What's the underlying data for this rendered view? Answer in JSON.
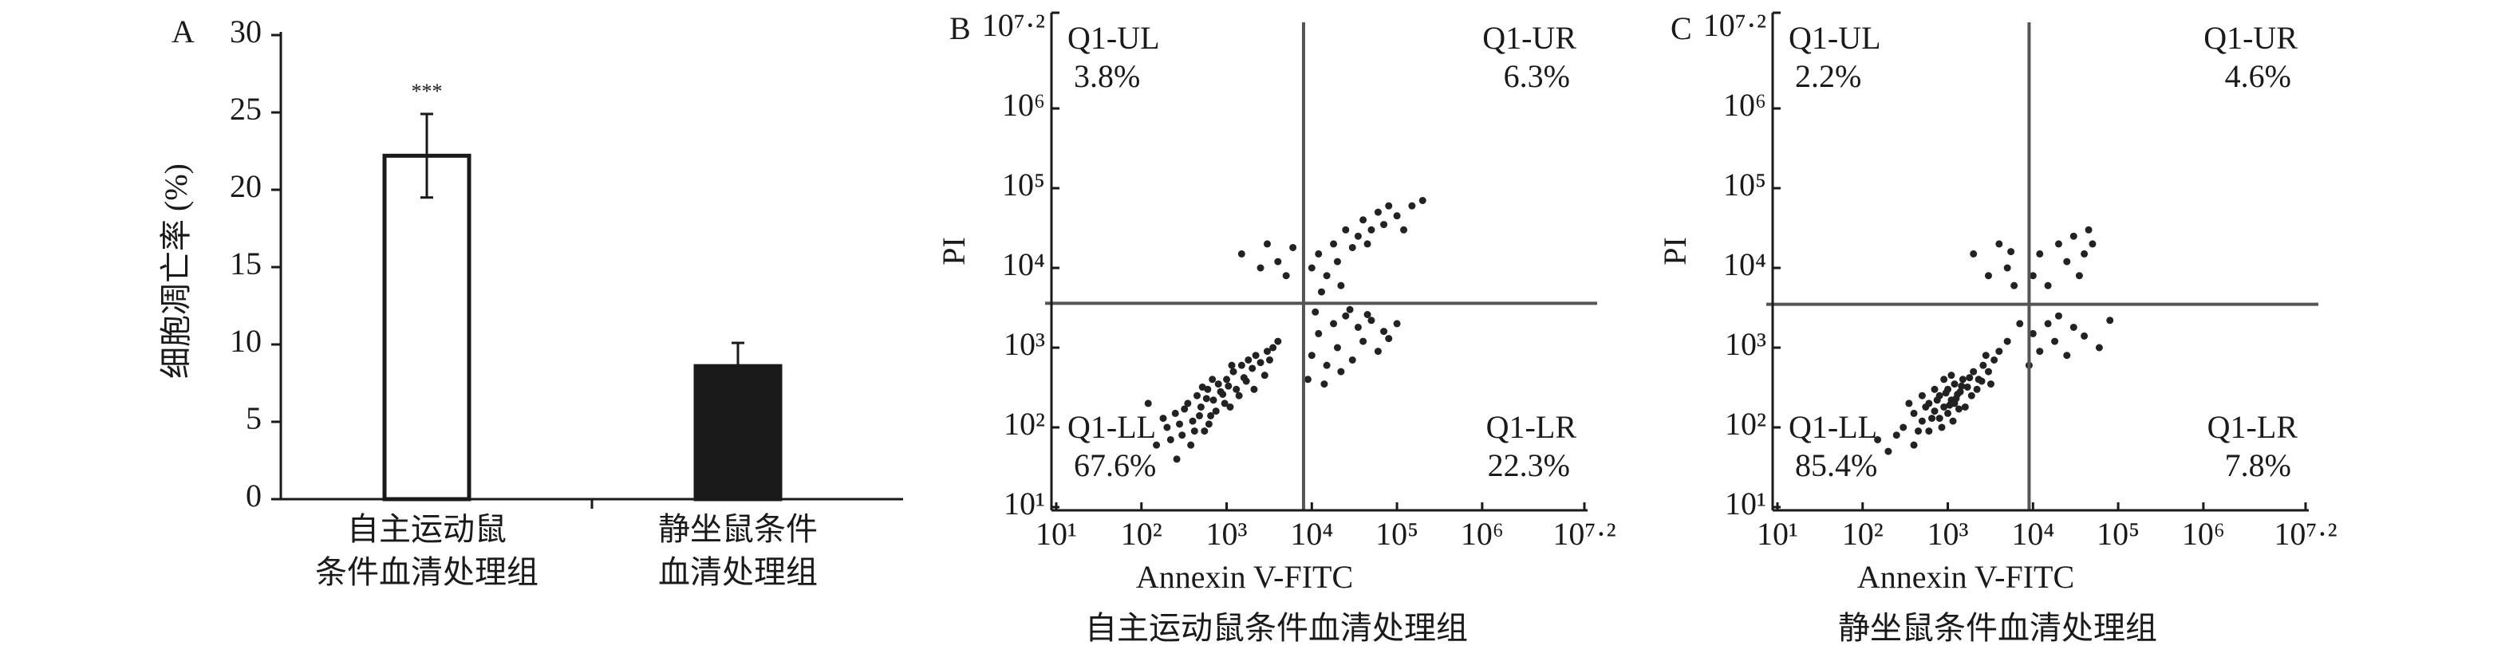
{
  "chart_data": [
    {
      "type": "bar",
      "panel_label": "A",
      "y_label": "细胞凋亡率 (%)",
      "categories": [
        [
          "自主运动鼠",
          "条件血清处理组"
        ],
        [
          "静坐鼠条件",
          "血清处理组"
        ]
      ],
      "values": [
        22.2,
        8.6
      ],
      "errors": [
        2.7,
        1.5
      ],
      "annotation": "***",
      "colors": [
        "#ffffff",
        "#1a1a1a"
      ],
      "edgecolor": "#1a1a1a",
      "ylim": [
        0,
        30
      ],
      "yticks": [
        0,
        5,
        10,
        15,
        20,
        25,
        30
      ]
    },
    {
      "type": "scatter",
      "panel_label": "B",
      "x_label": "Annexin V-FITC",
      "y_label": "PI",
      "subtitle": "自主运动鼠条件血清处理组",
      "xscale": "log",
      "yscale": "log",
      "color": "#222222",
      "xlim": [
        10,
        15848931.92
      ],
      "ylim": [
        10,
        15848931.92
      ],
      "xticks": [
        {
          "value": 10,
          "label": "10¹"
        },
        {
          "value": 100,
          "label": "10²"
        },
        {
          "value": 1000,
          "label": "10³"
        },
        {
          "value": 10000,
          "label": "10⁴"
        },
        {
          "value": 100000,
          "label": "10⁵"
        },
        {
          "value": 1000000,
          "label": "10⁶"
        },
        {
          "value": 15848931.92,
          "label": "10⁷·²"
        }
      ],
      "yticks": [
        {
          "value": 10,
          "label": "10¹"
        },
        {
          "value": 100,
          "label": "10²"
        },
        {
          "value": 1000,
          "label": "10³"
        },
        {
          "value": 10000,
          "label": "10⁴"
        },
        {
          "value": 100000,
          "label": "10⁵"
        },
        {
          "value": 1000000,
          "label": "10⁶"
        },
        {
          "value": 15848931.92,
          "label": "10⁷·²"
        }
      ],
      "gates": {
        "x": 8000,
        "y": 3600
      },
      "quadrants": {
        "names": [
          "Q1-UL",
          "Q1-UR",
          "Q1-LL",
          "Q1-LR"
        ],
        "values": [
          3.8,
          6.3,
          67.6,
          22.3
        ],
        "value_labels": [
          "3.8%",
          "6.3%",
          "67.6%",
          "22.3%"
        ]
      },
      "x": [
        200,
        250,
        300,
        350,
        400,
        450,
        500,
        550,
        600,
        650,
        700,
        800,
        900,
        1000,
        1100,
        1200,
        1300,
        1500,
        1600,
        1800,
        2000,
        2200,
        2500,
        3000,
        3500,
        150,
        180,
        220,
        280,
        320,
        380,
        420,
        480,
        520,
        580,
        620,
        680,
        750,
        850,
        950,
        1050,
        1150,
        1400,
        1700,
        2100,
        2800,
        3200,
        4000,
        120,
        260,
        9000,
        10000,
        12000,
        15000,
        18000,
        20000,
        25000,
        30000,
        35000,
        40000,
        50000,
        60000,
        70000,
        11000,
        14000,
        22000,
        28000,
        45000,
        80000,
        100000,
        10000,
        12000,
        15000,
        18000,
        20000,
        25000,
        30000,
        35000,
        40000,
        50000,
        60000,
        70000,
        80000,
        100000,
        150000,
        200000,
        13000,
        22000,
        45000,
        120000,
        1500,
        2500,
        3000,
        4000,
        5000,
        6000
      ],
      "y": [
        100,
        150,
        80,
        200,
        120,
        250,
        180,
        90,
        300,
        140,
        220,
        350,
        260,
        400,
        180,
        500,
        300,
        600,
        420,
        700,
        550,
        800,
        650,
        900,
        1000,
        60,
        130,
        70,
        110,
        170,
        60,
        90,
        140,
        320,
        230,
        110,
        400,
        160,
        280,
        200,
        330,
        600,
        250,
        380,
        300,
        450,
        700,
        1200,
        200,
        40,
        400,
        800,
        1500,
        600,
        2000,
        1000,
        2500,
        700,
        1800,
        1200,
        2200,
        900,
        1600,
        2800,
        350,
        500,
        3000,
        2600,
        1300,
        2000,
        10000,
        15000,
        8000,
        20000,
        12000,
        30000,
        18000,
        25000,
        40000,
        30000,
        50000,
        35000,
        60000,
        45000,
        60000,
        70000,
        5000,
        6000,
        20000,
        30000,
        15000,
        10000,
        20000,
        12000,
        8000,
        18000
      ]
    },
    {
      "type": "scatter",
      "panel_label": "C",
      "x_label": "Annexin V-FITC",
      "y_label": "PI",
      "subtitle": "静坐鼠条件血清处理组",
      "xscale": "log",
      "yscale": "log",
      "color": "#222222",
      "xlim": [
        10,
        15848931.92
      ],
      "ylim": [
        10,
        15848931.92
      ],
      "xticks": [
        {
          "value": 10,
          "label": "10¹"
        },
        {
          "value": 100,
          "label": "10²"
        },
        {
          "value": 1000,
          "label": "10³"
        },
        {
          "value": 10000,
          "label": "10⁴"
        },
        {
          "value": 100000,
          "label": "10⁵"
        },
        {
          "value": 1000000,
          "label": "10⁶"
        },
        {
          "value": 15848931.92,
          "label": "10⁷·²"
        }
      ],
      "yticks": [
        {
          "value": 10,
          "label": "10¹"
        },
        {
          "value": 100,
          "label": "10²"
        },
        {
          "value": 1000,
          "label": "10³"
        },
        {
          "value": 10000,
          "label": "10⁴"
        },
        {
          "value": 100000,
          "label": "10⁵"
        },
        {
          "value": 1000000,
          "label": "10⁶"
        },
        {
          "value": 15848931.92,
          "label": "10⁷·²"
        }
      ],
      "gates": {
        "x": 9000,
        "y": 3500
      },
      "quadrants": {
        "names": [
          "Q1-UL",
          "Q1-UR",
          "Q1-LL",
          "Q1-LR"
        ],
        "values": [
          2.2,
          4.6,
          85.4,
          7.8
        ],
        "value_labels": [
          "2.2%",
          "4.6%",
          "85.4%",
          "7.8%"
        ]
      },
      "x": [
        300,
        400,
        500,
        600,
        700,
        800,
        900,
        1000,
        1100,
        1200,
        1300,
        1500,
        1700,
        2000,
        2300,
        2600,
        3000,
        3500,
        400,
        500,
        600,
        700,
        800,
        900,
        1000,
        1100,
        1200,
        1400,
        1600,
        1800,
        2200,
        2500,
        2800,
        3200,
        4000,
        5000,
        250,
        350,
        450,
        550,
        650,
        750,
        850,
        950,
        1050,
        1150,
        1250,
        1350,
        1450,
        1900,
        200,
        150,
        9000,
        10000,
        12000,
        15000,
        18000,
        20000,
        25000,
        30000,
        40000,
        60000,
        80000,
        7000,
        10000,
        12000,
        15000,
        20000,
        25000,
        30000,
        35000,
        40000,
        50000,
        45000,
        2000,
        3000,
        4000,
        5000,
        6000,
        5500
      ],
      "y": [
        100,
        150,
        120,
        200,
        160,
        250,
        180,
        300,
        220,
        350,
        260,
        400,
        320,
        500,
        400,
        600,
        500,
        700,
        60,
        250,
        90,
        300,
        130,
        400,
        150,
        450,
        200,
        280,
        180,
        420,
        300,
        380,
        800,
        350,
        900,
        1200,
        80,
        200,
        90,
        180,
        130,
        220,
        100,
        270,
        190,
        120,
        230,
        170,
        330,
        250,
        50,
        70,
        600,
        1500,
        900,
        2000,
        1200,
        2500,
        800,
        1800,
        1400,
        1000,
        2200,
        2000,
        8000,
        15000,
        6000,
        20000,
        12000,
        25000,
        8000,
        15000,
        20000,
        30000,
        15000,
        8000,
        20000,
        10000,
        6000,
        16000
      ]
    }
  ]
}
